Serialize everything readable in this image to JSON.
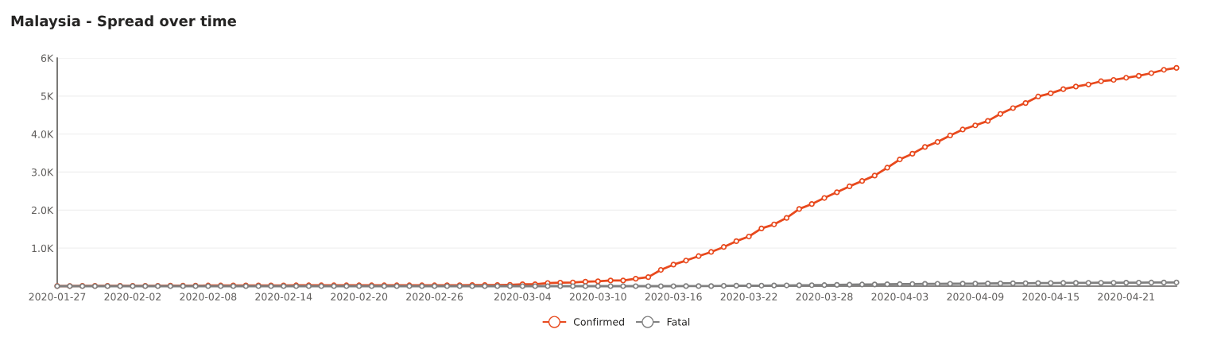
{
  "chart_data": {
    "type": "line",
    "title": "Malaysia - Spread over time",
    "x": [
      "2020-01-27",
      "2020-01-28",
      "2020-01-29",
      "2020-01-30",
      "2020-01-31",
      "2020-02-01",
      "2020-02-02",
      "2020-02-03",
      "2020-02-04",
      "2020-02-05",
      "2020-02-06",
      "2020-02-07",
      "2020-02-08",
      "2020-02-09",
      "2020-02-10",
      "2020-02-11",
      "2020-02-12",
      "2020-02-13",
      "2020-02-14",
      "2020-02-15",
      "2020-02-16",
      "2020-02-17",
      "2020-02-18",
      "2020-02-19",
      "2020-02-20",
      "2020-02-21",
      "2020-02-22",
      "2020-02-23",
      "2020-02-24",
      "2020-02-25",
      "2020-02-26",
      "2020-02-27",
      "2020-02-28",
      "2020-02-29",
      "2020-03-01",
      "2020-03-02",
      "2020-03-03",
      "2020-03-04",
      "2020-03-05",
      "2020-03-06",
      "2020-03-07",
      "2020-03-08",
      "2020-03-09",
      "2020-03-10",
      "2020-03-11",
      "2020-03-12",
      "2020-03-13",
      "2020-03-14",
      "2020-03-15",
      "2020-03-16",
      "2020-03-17",
      "2020-03-18",
      "2020-03-19",
      "2020-03-20",
      "2020-03-21",
      "2020-03-22",
      "2020-03-23",
      "2020-03-24",
      "2020-03-25",
      "2020-03-26",
      "2020-03-27",
      "2020-03-28",
      "2020-03-29",
      "2020-03-30",
      "2020-03-31",
      "2020-04-01",
      "2020-04-02",
      "2020-04-03",
      "2020-04-04",
      "2020-04-05",
      "2020-04-06",
      "2020-04-07",
      "2020-04-08",
      "2020-04-09",
      "2020-04-10",
      "2020-04-11",
      "2020-04-12",
      "2020-04-13",
      "2020-04-14",
      "2020-04-15",
      "2020-04-16",
      "2020-04-17",
      "2020-04-18",
      "2020-04-19",
      "2020-04-20",
      "2020-04-21",
      "2020-04-22",
      "2020-04-23",
      "2020-04-24",
      "2020-04-25"
    ],
    "series": [
      {
        "name": "Confirmed",
        "color": "#e8491d",
        "values": [
          4,
          4,
          7,
          8,
          8,
          8,
          8,
          8,
          10,
          12,
          12,
          12,
          16,
          16,
          18,
          18,
          18,
          19,
          19,
          22,
          22,
          22,
          22,
          22,
          22,
          22,
          22,
          22,
          22,
          22,
          22,
          23,
          25,
          29,
          29,
          29,
          36,
          50,
          50,
          83,
          93,
          99,
          117,
          129,
          149,
          149,
          197,
          238,
          428,
          566,
          673,
          790,
          900,
          1030,
          1183,
          1306,
          1518,
          1624,
          1796,
          2031,
          2161,
          2320,
          2470,
          2626,
          2766,
          2908,
          3116,
          3333,
          3483,
          3662,
          3793,
          3963,
          4119,
          4228,
          4346,
          4530,
          4683,
          4817,
          4987,
          5072,
          5182,
          5251,
          5305,
          5389,
          5425,
          5482,
          5532,
          5603,
          5691,
          5742
        ]
      },
      {
        "name": "Fatal",
        "color": "#808080",
        "values": [
          0,
          0,
          0,
          0,
          0,
          0,
          0,
          0,
          0,
          0,
          0,
          0,
          0,
          0,
          0,
          0,
          0,
          0,
          0,
          0,
          0,
          0,
          0,
          0,
          0,
          0,
          0,
          0,
          0,
          0,
          0,
          0,
          0,
          0,
          0,
          0,
          0,
          0,
          0,
          0,
          0,
          0,
          0,
          0,
          0,
          0,
          0,
          0,
          0,
          0,
          2,
          2,
          2,
          10,
          14,
          15,
          15,
          19,
          20,
          23,
          26,
          27,
          34,
          37,
          43,
          45,
          50,
          53,
          57,
          61,
          62,
          63,
          65,
          67,
          70,
          73,
          76,
          77,
          82,
          83,
          84,
          86,
          88,
          89,
          89,
          92,
          93,
          95,
          96,
          98
        ]
      }
    ],
    "xlim": [
      "2020-01-27",
      "2020-04-25"
    ],
    "xticks": [
      "2020-01-27",
      "2020-02-02",
      "2020-02-08",
      "2020-02-14",
      "2020-02-20",
      "2020-02-26",
      "2020-03-04",
      "2020-03-10",
      "2020-03-16",
      "2020-03-22",
      "2020-03-28",
      "2020-04-03",
      "2020-04-09",
      "2020-04-15",
      "2020-04-21"
    ],
    "ylim": [
      0,
      6000
    ],
    "yticks": [
      {
        "value": 1000,
        "label": "1.0K"
      },
      {
        "value": 2000,
        "label": "2.0K"
      },
      {
        "value": 3000,
        "label": "3.0K"
      },
      {
        "value": 4000,
        "label": "4.0K"
      },
      {
        "value": 5000,
        "label": "5K"
      },
      {
        "value": 6000,
        "label": "6K"
      }
    ],
    "grid": "y",
    "legend": "bottom",
    "marker": "circle",
    "line_style": "solid"
  }
}
